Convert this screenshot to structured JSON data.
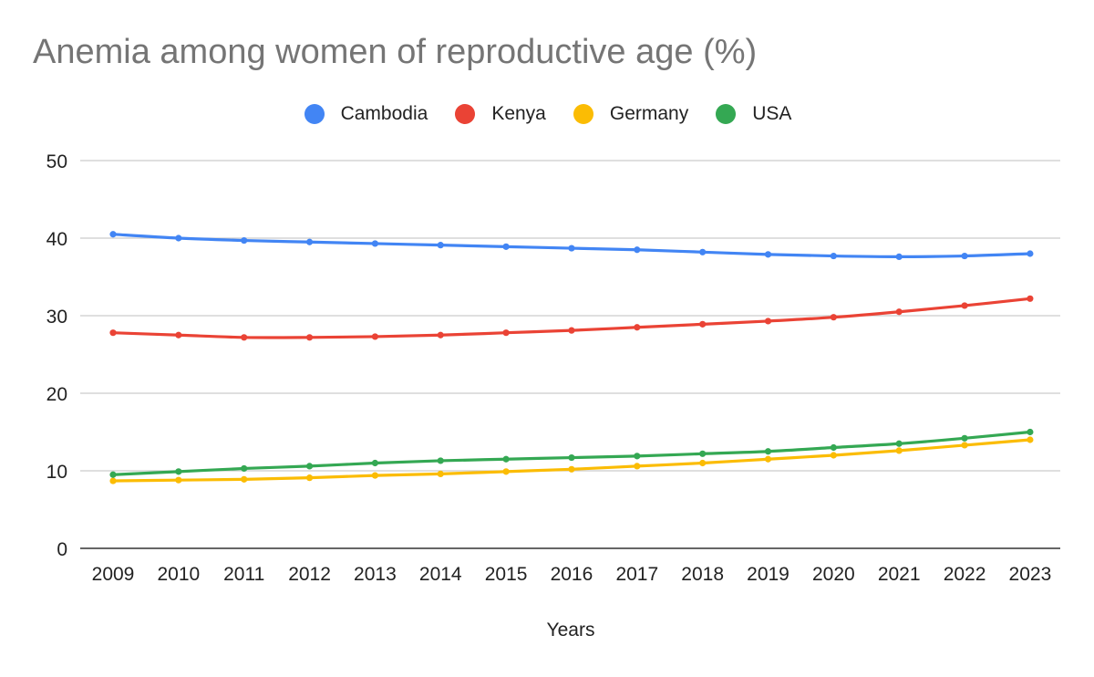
{
  "chart_data": {
    "type": "line",
    "title": "Anemia among women of reproductive age (%)",
    "xlabel": "Years",
    "ylabel": "",
    "categories": [
      "2009",
      "2010",
      "2011",
      "2012",
      "2013",
      "2014",
      "2015",
      "2016",
      "2017",
      "2018",
      "2019",
      "2020",
      "2021",
      "2022",
      "2023"
    ],
    "ylim": [
      0,
      50
    ],
    "yticks": [
      0,
      10,
      20,
      30,
      40,
      50
    ],
    "grid": true,
    "legend_position": "top-center",
    "series": [
      {
        "name": "Cambodia",
        "color": "#4285F4",
        "values": [
          40.5,
          40.0,
          39.7,
          39.5,
          39.3,
          39.1,
          38.9,
          38.7,
          38.5,
          38.2,
          37.9,
          37.7,
          37.6,
          37.7,
          38.0
        ]
      },
      {
        "name": "Kenya",
        "color": "#EA4335",
        "values": [
          27.8,
          27.5,
          27.2,
          27.2,
          27.3,
          27.5,
          27.8,
          28.1,
          28.5,
          28.9,
          29.3,
          29.8,
          30.5,
          31.3,
          32.2
        ]
      },
      {
        "name": "Germany",
        "color": "#FBBC04",
        "values": [
          8.7,
          8.8,
          8.9,
          9.1,
          9.4,
          9.6,
          9.9,
          10.2,
          10.6,
          11.0,
          11.5,
          12.0,
          12.6,
          13.3,
          14.0
        ]
      },
      {
        "name": "USA",
        "color": "#34A853",
        "values": [
          9.5,
          9.9,
          10.3,
          10.6,
          11.0,
          11.3,
          11.5,
          11.7,
          11.9,
          12.2,
          12.5,
          13.0,
          13.5,
          14.2,
          15.0
        ]
      }
    ]
  }
}
